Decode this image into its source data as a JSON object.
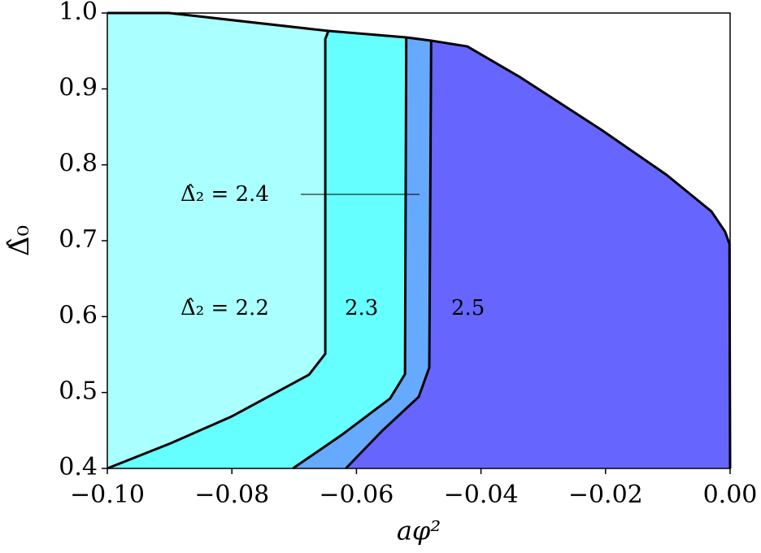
{
  "chart_data": {
    "type": "contourf",
    "xlabel": "aφ²",
    "ylabel": "Δ̂₀",
    "xlim": [
      -0.1,
      0.0
    ],
    "ylim": [
      0.4,
      1.0
    ],
    "xticks": [
      {
        "value": -0.1,
        "label": "−0.10"
      },
      {
        "value": -0.08,
        "label": "−0.08"
      },
      {
        "value": -0.06,
        "label": "−0.06"
      },
      {
        "value": -0.04,
        "label": "−0.04"
      },
      {
        "value": -0.02,
        "label": "−0.02"
      },
      {
        "value": 0.0,
        "label": "0.00"
      }
    ],
    "yticks": [
      0.4,
      0.5,
      0.6,
      0.7,
      0.8,
      0.9,
      {
        "value": 1.0,
        "label": "1.0"
      }
    ],
    "series": [
      {
        "color": "#aaffff",
        "x": [
          -0.1,
          -0.0901,
          -0.0645,
          -0.052,
          -0.048,
          -0.0422,
          -0.0337,
          -0.0206,
          -0.0102,
          -0.003,
          -0.0008,
          -0.0001,
          0.0
        ],
        "values": [
          1.0,
          1.0,
          0.9764,
          0.9679,
          0.9636,
          0.956,
          0.9154,
          0.8457,
          0.7868,
          0.7386,
          0.7118,
          0.6957,
          0.4
        ]
      },
      {
        "color": "#66ffff",
        "x": [
          -0.0645,
          -0.065,
          -0.065,
          -0.0676,
          -0.08,
          -0.0898,
          -0.1
        ],
        "values": [
          0.9764,
          0.9657,
          0.551,
          0.5236,
          0.4686,
          0.4332,
          0.4
        ]
      },
      {
        "color": "#66aaff",
        "x": [
          -0.052,
          -0.0522,
          -0.0546,
          -0.0624,
          -0.0702
        ],
        "values": [
          0.9679,
          0.5243,
          0.4921,
          0.4439,
          0.4
        ]
      },
      {
        "color": "#6666ff",
        "x": [
          -0.048,
          -0.0483,
          -0.05,
          -0.0559,
          -0.0617
        ],
        "values": [
          0.9636,
          0.5329,
          0.4943,
          0.4493,
          0.4
        ]
      }
    ],
    "annotations": [
      "Δ̂₂ = 2.4",
      "Δ̂₂ = 2.2",
      "2.3",
      "2.5"
    ]
  }
}
